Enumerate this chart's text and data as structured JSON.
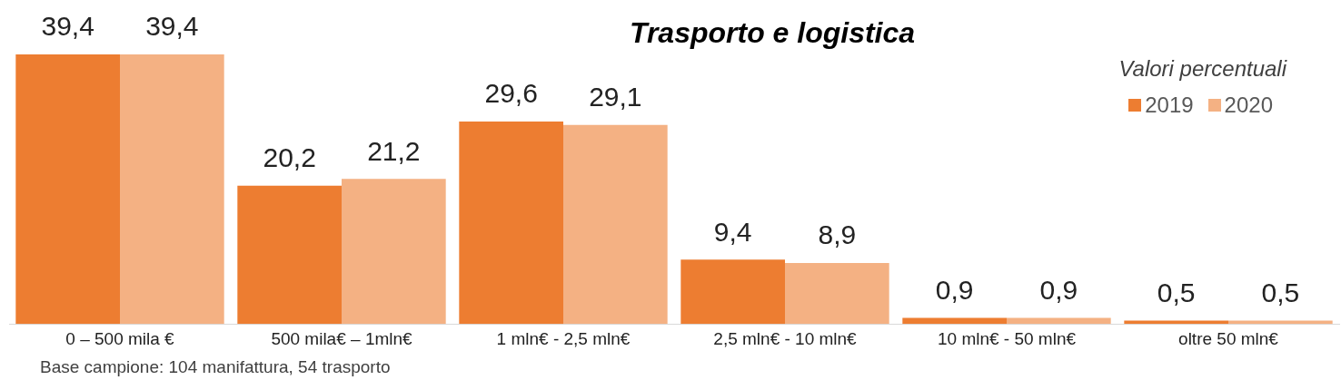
{
  "chart_data": {
    "type": "bar",
    "title": "Trasporto e logistica",
    "subtitle": "Valori percentuali",
    "categories": [
      "0 – 500 mila €",
      "500 mila€ – 1mln€",
      "1 mln€ - 2,5 mln€",
      "2,5 mln€ - 10 mln€",
      "10 mln€ - 50 mln€",
      "oltre 50 mln€"
    ],
    "series": [
      {
        "name": "2019",
        "color": "#ed7d31",
        "values": [
          39.4,
          20.2,
          29.6,
          9.4,
          0.9,
          0.5
        ],
        "value_labels": [
          "39,4",
          "20,2",
          "29,6",
          "9,4",
          "0,9",
          "0,5"
        ]
      },
      {
        "name": "2020",
        "color": "#f4b183",
        "values": [
          39.4,
          21.2,
          29.1,
          8.9,
          0.9,
          0.5
        ],
        "value_labels": [
          "39,4",
          "21,2",
          "29,1",
          "8,9",
          "0,9",
          "0,5"
        ]
      }
    ],
    "legend": "top right",
    "grid": false,
    "annotations": [
      "Base campione: 104 manifattura, 54 trasporto"
    ]
  }
}
